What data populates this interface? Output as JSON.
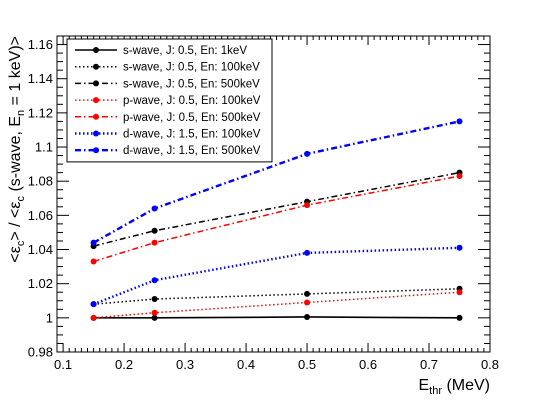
{
  "chart_data": {
    "type": "line",
    "xlabel": {
      "base": "E",
      "sub": "thr",
      "rest": " (MeV)"
    },
    "ylabel": {
      "p1": "<ε",
      "s1": "c",
      "p2": "> / <ε",
      "s2": "c",
      "p3": " (s-wave, E",
      "s3": "n",
      "p4": " = 1 keV)>"
    },
    "xlim": [
      0.09,
      0.8
    ],
    "ylim": [
      0.98,
      1.165
    ],
    "x_ticks": [
      0.1,
      0.2,
      0.3,
      0.4,
      0.5,
      0.6,
      0.7,
      0.8
    ],
    "x_tick_labels": [
      "0.1",
      "0.2",
      "0.3",
      "0.4",
      "0.5",
      "0.6",
      "0.7",
      "0.8"
    ],
    "y_ticks": [
      0.98,
      1.0,
      1.02,
      1.04,
      1.06,
      1.08,
      1.1,
      1.12,
      1.14,
      1.16
    ],
    "y_tick_labels": [
      "0.98",
      "1",
      "1.02",
      "1.04",
      "1.06",
      "1.08",
      "1.1",
      "1.12",
      "1.14",
      "1.16"
    ],
    "legend_position": "top-left",
    "x": [
      0.15,
      0.25,
      0.5,
      0.75
    ],
    "series": [
      {
        "name": "s-wave, J: 0.5, En: 1keV",
        "color": "#000000",
        "dash": "solid",
        "values": [
          1.0,
          1.0,
          1.0005,
          1.0
        ]
      },
      {
        "name": "s-wave, J: 0.5, En: 100keV",
        "color": "#000000",
        "dash": "dotted",
        "values": [
          1.008,
          1.011,
          1.014,
          1.017
        ]
      },
      {
        "name": "s-wave, J: 0.5, En: 500keV",
        "color": "#000000",
        "dash": "dashdot",
        "values": [
          1.042,
          1.051,
          1.068,
          1.085
        ]
      },
      {
        "name": "p-wave, J: 0.5, En: 100keV",
        "color": "#ff0000",
        "dash": "dotted",
        "values": [
          1.0,
          1.003,
          1.009,
          1.015
        ]
      },
      {
        "name": "p-wave, J: 0.5, En: 500keV",
        "color": "#ff0000",
        "dash": "dashdot",
        "values": [
          1.033,
          1.044,
          1.066,
          1.083
        ]
      },
      {
        "name": "d-wave, J: 1.5, En: 100keV",
        "color": "#0000ff",
        "dash": "dotted",
        "values": [
          1.008,
          1.022,
          1.038,
          1.041
        ]
      },
      {
        "name": "d-wave, J: 1.5, En: 500keV",
        "color": "#0000ff",
        "dash": "dashdot",
        "values": [
          1.044,
          1.064,
          1.096,
          1.115
        ]
      }
    ]
  }
}
